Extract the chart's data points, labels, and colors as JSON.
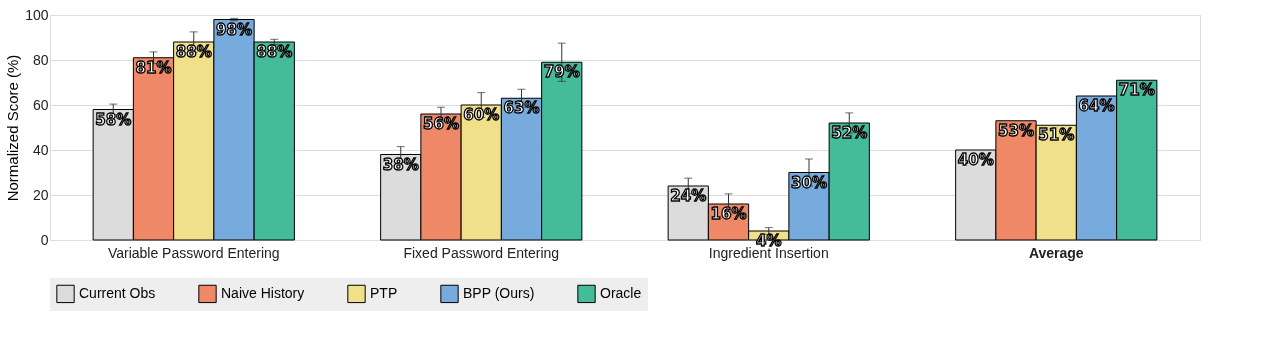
{
  "chart_data": {
    "type": "bar",
    "ylabel": "Normalized Score (%)",
    "categories": [
      "Variable Password Entering",
      "Fixed Password Entering",
      "Ingredient Insertion",
      "Average"
    ],
    "series": [
      {
        "name": "Current Obs",
        "color": "#dcdcdc",
        "values": [
          58,
          38,
          24,
          40
        ],
        "errors": [
          2.4,
          3.5,
          3.5,
          null
        ]
      },
      {
        "name": "Naive History",
        "color": "#ee8866",
        "values": [
          81,
          56,
          16,
          53
        ],
        "errors": [
          2.6,
          3,
          4.5,
          null
        ]
      },
      {
        "name": "PTP",
        "color": "#f0e08a",
        "values": [
          88,
          60,
          4,
          51
        ],
        "errors": [
          4.5,
          5.5,
          1.5,
          null
        ]
      },
      {
        "name": "BPP (Ours)",
        "color": "#77aadd",
        "values": [
          98,
          63,
          30,
          64
        ],
        "errors": [
          0.5,
          4,
          6,
          null
        ]
      },
      {
        "name": "Oracle",
        "color": "#44bb99",
        "values": [
          88,
          79,
          52,
          71
        ],
        "errors": [
          1.2,
          8.5,
          4.5,
          null
        ]
      }
    ],
    "value_labels": [
      [
        "58%",
        "38%",
        "24%",
        "40%"
      ],
      [
        "81%",
        "56%",
        "16%",
        "53%"
      ],
      [
        "88%",
        "60%",
        "4%",
        "51%"
      ],
      [
        "98%",
        "63%",
        "30%",
        "64%"
      ],
      [
        "88%",
        "79%",
        "52%",
        "71%"
      ]
    ],
    "ylim": [
      0,
      100
    ],
    "yticks": [
      0,
      20,
      40,
      60,
      80,
      100
    ],
    "grid": "y",
    "legend": "bottom"
  }
}
